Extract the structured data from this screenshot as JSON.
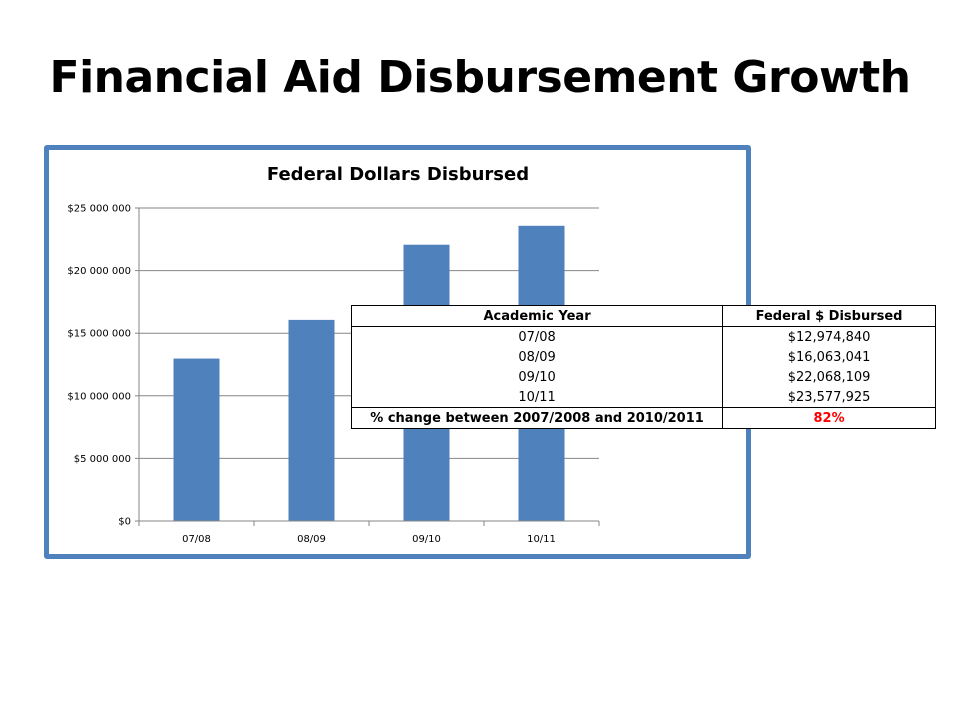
{
  "slide": {
    "title": "Financial Aid Disbursement Growth"
  },
  "colors": {
    "bar": "#4f81bd",
    "frame": "#4f81bd",
    "axis": "#868686",
    "highlight": "#ff0000"
  },
  "chart_data": {
    "type": "bar",
    "title": "Federal Dollars Disbursed",
    "xlabel": "",
    "ylabel": "",
    "categories": [
      "07/08",
      "08/09",
      "09/10",
      "10/11"
    ],
    "values": [
      12974840,
      16063041,
      22068109,
      23577925
    ],
    "ylim": [
      0,
      25000000
    ],
    "yticks": [
      0,
      5000000,
      10000000,
      15000000,
      20000000,
      25000000
    ],
    "ytick_labels": [
      "$0",
      "$5 000 000",
      "$10 000 000",
      "$15 000 000",
      "$20 000 000",
      "$25 000 000"
    ],
    "grid": "horizontal",
    "legend": "none"
  },
  "table": {
    "headers": [
      "Academic Year",
      "Federal $ Disbursed"
    ],
    "rows": [
      [
        "07/08",
        "$12,974,840"
      ],
      [
        "08/09",
        "$16,063,041"
      ],
      [
        "09/10",
        "$22,068,109"
      ],
      [
        "10/11",
        "$23,577,925"
      ]
    ],
    "summary_label": "% change between 2007/2008 and 2010/2011",
    "summary_value": "82%"
  }
}
